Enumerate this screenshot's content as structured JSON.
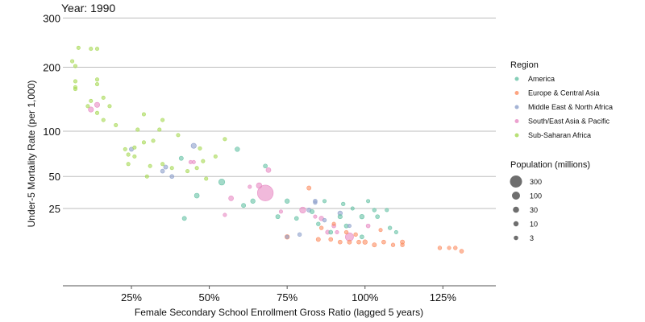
{
  "chart_data": {
    "type": "scatter",
    "frame_label": "Year: 1990",
    "xlabel": "Female Secondary School Enrollment Gross Ratio (lagged 5 years)",
    "ylabel": "Under-5 Mortality Rate (per 1,000)",
    "x_ticks": [
      {
        "value": 25,
        "label": "25%"
      },
      {
        "value": 50,
        "label": "50%"
      },
      {
        "value": 75,
        "label": "75%"
      },
      {
        "value": 100,
        "label": "100%"
      },
      {
        "value": 125,
        "label": "125%"
      }
    ],
    "y_ticks": [
      {
        "value": 25,
        "label": "25"
      },
      {
        "value": 50,
        "label": "50"
      },
      {
        "value": 100,
        "label": "100"
      },
      {
        "value": 200,
        "label": "200"
      },
      {
        "value": 300,
        "label": "300"
      }
    ],
    "xlim": [
      3,
      142
    ],
    "ylim": [
      0,
      308
    ],
    "y_scale": "sqrt",
    "grid": "horizontal",
    "legend": {
      "placement": "right",
      "region_title": "Region",
      "regions": [
        {
          "name": "America",
          "color": "#66c2a5"
        },
        {
          "name": "Europe & Central Asia",
          "color": "#fc8d62"
        },
        {
          "name": "Middle East & North Africa",
          "color": "#8da0cb"
        },
        {
          "name": "South/East Asia & Pacific",
          "color": "#e78ac3"
        },
        {
          "name": "Sub-Saharan Africa",
          "color": "#a6d854"
        }
      ],
      "population_title": "Population (millions)",
      "population_sizes": [
        {
          "value": 300,
          "label": "300"
        },
        {
          "value": 100,
          "label": "100"
        },
        {
          "value": 30,
          "label": "30"
        },
        {
          "value": 10,
          "label": "10"
        },
        {
          "value": 3,
          "label": "3"
        }
      ]
    },
    "series": [
      {
        "name": "Sub-Saharan Africa",
        "points": [
          [
            8,
            237,
            3
          ],
          [
            12,
            235,
            3
          ],
          [
            14,
            235,
            3
          ],
          [
            6,
            211,
            3
          ],
          [
            7,
            202,
            3
          ],
          [
            7,
            175,
            3
          ],
          [
            14,
            178,
            3
          ],
          [
            7,
            165,
            3
          ],
          [
            7,
            162,
            3
          ],
          [
            14,
            170,
            3
          ],
          [
            16,
            148,
            3
          ],
          [
            12,
            143,
            3
          ],
          [
            11,
            135,
            3
          ],
          [
            18,
            135,
            3
          ],
          [
            14,
            125,
            3
          ],
          [
            16,
            115,
            3
          ],
          [
            20,
            108,
            3
          ],
          [
            29,
            123,
            3
          ],
          [
            34,
            102,
            3
          ],
          [
            27,
            102,
            3
          ],
          [
            35,
            115,
            3
          ],
          [
            40,
            95,
            3
          ],
          [
            32,
            88,
            3
          ],
          [
            23,
            78,
            3
          ],
          [
            26,
            80,
            3
          ],
          [
            29,
            86,
            3
          ],
          [
            26,
            70,
            3
          ],
          [
            24,
            72,
            3
          ],
          [
            35,
            62,
            3
          ],
          [
            31,
            60,
            3
          ],
          [
            38,
            58,
            3
          ],
          [
            24,
            62,
            3
          ],
          [
            30,
            50,
            3
          ],
          [
            47,
            79,
            3
          ],
          [
            48,
            65,
            3
          ],
          [
            55,
            90,
            3
          ],
          [
            52,
            70,
            3
          ],
          [
            46,
            58,
            3
          ],
          [
            49,
            48,
            3
          ],
          [
            43,
            55,
            3
          ]
        ]
      },
      {
        "name": "South/East Asia & Pacific",
        "points": [
          [
            14,
            137,
            12
          ],
          [
            12,
            130,
            12
          ],
          [
            68,
            36,
            220
          ],
          [
            69,
            56,
            10
          ],
          [
            66,
            42,
            15
          ],
          [
            57,
            32,
            10
          ],
          [
            80,
            24,
            20
          ],
          [
            86,
            19,
            8
          ],
          [
            90,
            15,
            5
          ],
          [
            88,
            12,
            6
          ],
          [
            95,
            10,
            45
          ],
          [
            84,
            20,
            3
          ],
          [
            91,
            12,
            3
          ],
          [
            101,
            15,
            5
          ],
          [
            55,
            21,
            3
          ],
          [
            44,
            64,
            3
          ],
          [
            45,
            64,
            3
          ],
          [
            63,
            41,
            3
          ],
          [
            73,
            23,
            3
          ]
        ]
      },
      {
        "name": "Middle East & North Africa",
        "points": [
          [
            45,
            82,
            12
          ],
          [
            25,
            78,
            6
          ],
          [
            38,
            50,
            5
          ],
          [
            35,
            55,
            5
          ],
          [
            36,
            59,
            6
          ],
          [
            92,
            22,
            8
          ],
          [
            82,
            24,
            6
          ],
          [
            79,
            11,
            4
          ],
          [
            87,
            18,
            4
          ],
          [
            84,
            29,
            4
          ],
          [
            95,
            15,
            3
          ],
          [
            75,
            10,
            3
          ],
          [
            84,
            30,
            5
          ]
        ]
      },
      {
        "name": "America",
        "points": [
          [
            41,
            68,
            6
          ],
          [
            54,
            45,
            20
          ],
          [
            46,
            34,
            10
          ],
          [
            59,
            78,
            8
          ],
          [
            61,
            27,
            6
          ],
          [
            64,
            30,
            8
          ],
          [
            68,
            60,
            5
          ],
          [
            75,
            30,
            8
          ],
          [
            72,
            20,
            6
          ],
          [
            78,
            19,
            5
          ],
          [
            83,
            23,
            6
          ],
          [
            85,
            16,
            4
          ],
          [
            92,
            20,
            7
          ],
          [
            94,
            15,
            6
          ],
          [
            99,
            20,
            8
          ],
          [
            99,
            10,
            5
          ],
          [
            104,
            20,
            5
          ],
          [
            108,
            14,
            4
          ],
          [
            110,
            12,
            3
          ],
          [
            89,
            12,
            5
          ],
          [
            93,
            28,
            4
          ],
          [
            96,
            25,
            3
          ],
          [
            101,
            30,
            3
          ],
          [
            103,
            24,
            4
          ],
          [
            42,
            19,
            6
          ],
          [
            107,
            24,
            3
          ],
          [
            87,
            30,
            3
          ]
        ]
      },
      {
        "name": "Europe & Central Asia",
        "points": [
          [
            82,
            40,
            6
          ],
          [
            75,
            10,
            8
          ],
          [
            85,
            9,
            6
          ],
          [
            89,
            9,
            5
          ],
          [
            92,
            8,
            5
          ],
          [
            95,
            8,
            6
          ],
          [
            98,
            8,
            5
          ],
          [
            100,
            8,
            8
          ],
          [
            103,
            7,
            6
          ],
          [
            106,
            8,
            5
          ],
          [
            109,
            7,
            4
          ],
          [
            112,
            8,
            6
          ],
          [
            124,
            6,
            4
          ],
          [
            127,
            6,
            3
          ],
          [
            129,
            6,
            4
          ],
          [
            131,
            5,
            5
          ],
          [
            94,
            12,
            4
          ],
          [
            97,
            11,
            4
          ],
          [
            86,
            14,
            4
          ],
          [
            90,
            16,
            3
          ],
          [
            105,
            13,
            3
          ],
          [
            112,
            7,
            4
          ]
        ]
      }
    ]
  }
}
